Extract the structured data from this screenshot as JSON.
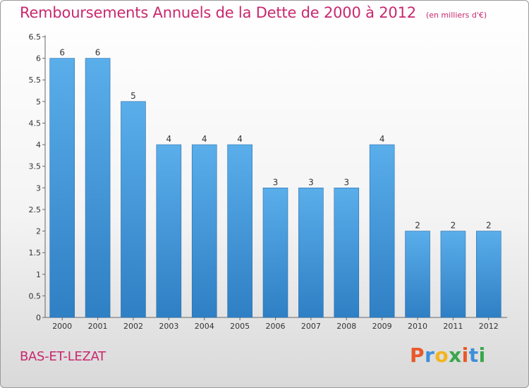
{
  "title": "Remboursements Annuels de la Dette de 2000 à 2012",
  "subtitle": "(en milliers d'€)",
  "place": "BAS-ET-LEZAT",
  "logo": {
    "letters": [
      "P",
      "r",
      "o",
      "x",
      "i",
      "t",
      "i"
    ],
    "colors": [
      "#e8592b",
      "#3d8fd8",
      "#f2b51d",
      "#3aa64b",
      "#e8592b",
      "#3d8fd8",
      "#3aa64b"
    ]
  },
  "chart_data": {
    "type": "bar",
    "categories": [
      "2000",
      "2001",
      "2002",
      "2003",
      "2004",
      "2005",
      "2006",
      "2007",
      "2008",
      "2009",
      "2010",
      "2011",
      "2012"
    ],
    "values": [
      6,
      6,
      5,
      4,
      4,
      4,
      3,
      3,
      3,
      4,
      2,
      2,
      2
    ],
    "data_labels": [
      "6",
      "6",
      "5",
      "4",
      "4",
      "4",
      "3",
      "3",
      "3",
      "4",
      "2",
      "2",
      "2"
    ],
    "y_ticks": [
      "0",
      "0.5",
      "1",
      "1.5",
      "2",
      "2.5",
      "3",
      "3.5",
      "4",
      "4.5",
      "5",
      "5.5",
      "6",
      "6.5"
    ],
    "ylim": [
      0,
      6.5
    ],
    "grid": false,
    "bar_color": "#4a9de0"
  }
}
